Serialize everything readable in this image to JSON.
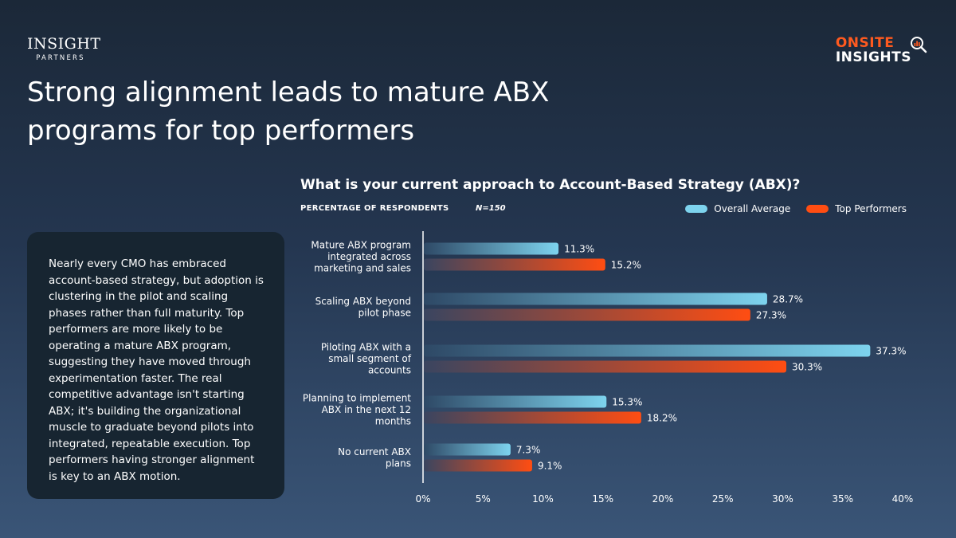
{
  "brand_left": {
    "line1": "INSIGHT",
    "line2": "PARTNERS"
  },
  "brand_right": {
    "line1": "ONSITE",
    "line2": "INSIGHTS",
    "icon": "magnifier-chart-icon"
  },
  "title": "Strong alignment leads to mature ABX programs for top performers",
  "body_text": "Nearly every CMO has embraced account-based strategy, but adoption is clustering in the pilot and scaling phases rather than full maturity. Top performers are more likely to be operating a mature ABX program, suggesting they have moved through experimentation faster. The real competitive advantage isn't starting ABX; it's building the organizational muscle to graduate beyond pilots into integrated, repeatable execution. Top performers having stronger alignment is key to an ABX motion.",
  "colors": {
    "overall": "#7dd3ee",
    "top": "#ff4d12",
    "accent": "#ff5a1f"
  },
  "chart_data": {
    "type": "bar",
    "orientation": "horizontal",
    "title": "What is your current approach to Account-Based Strategy (ABX)?",
    "subtitle": "PERCENTAGE OF RESPONDENTS",
    "sample": "N=150",
    "legend_position": "top-right",
    "categories": [
      [
        "Mature ABX program",
        "integrated across",
        "marketing and sales"
      ],
      [
        "Scaling ABX beyond",
        "pilot phase"
      ],
      [
        "Piloting ABX with a",
        "small segment of",
        "accounts"
      ],
      [
        "Planning to implement",
        "ABX in the next 12",
        "months"
      ],
      [
        "No current ABX",
        "plans"
      ]
    ],
    "series": [
      {
        "name": "Overall Average",
        "values": [
          11.3,
          28.7,
          37.3,
          15.3,
          7.3
        ]
      },
      {
        "name": "Top Performers",
        "values": [
          15.2,
          27.3,
          30.3,
          18.2,
          9.1
        ]
      }
    ],
    "xlim": [
      0,
      40
    ],
    "xticks": [
      "0%",
      "5%",
      "10%",
      "15%",
      "20%",
      "25%",
      "30%",
      "35%",
      "40%"
    ],
    "grid": false
  }
}
